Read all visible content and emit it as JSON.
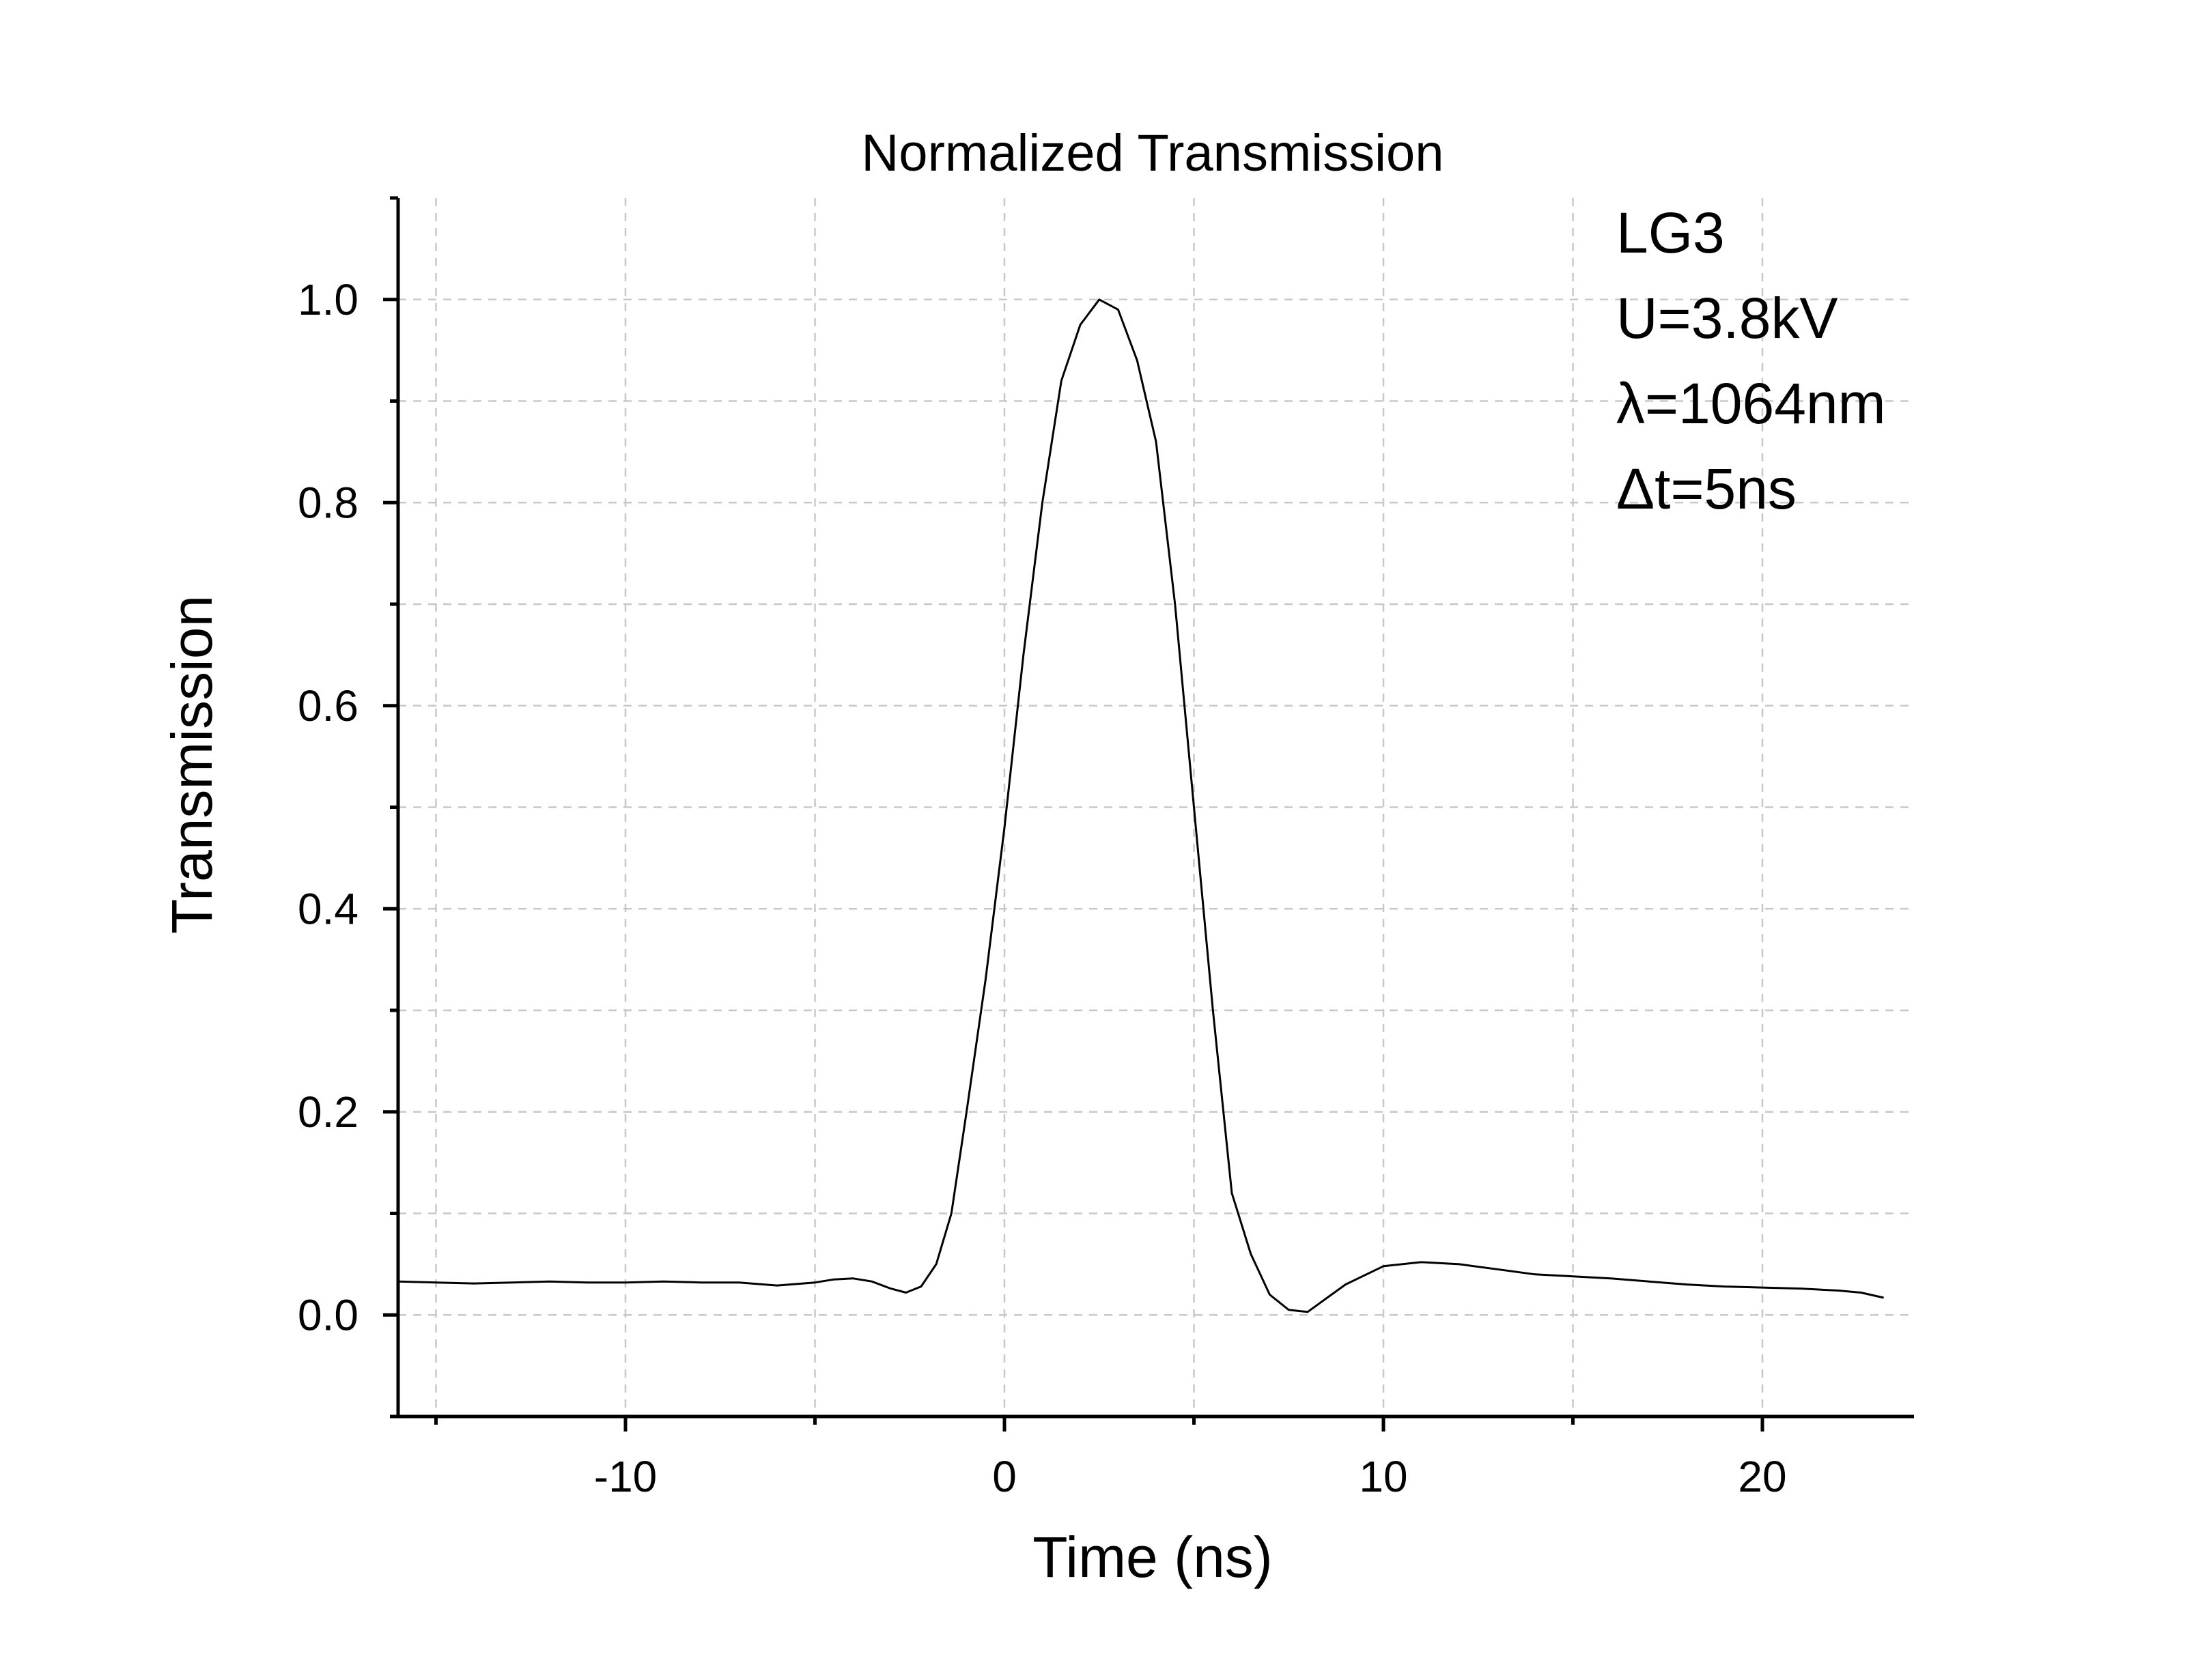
{
  "chart_data": {
    "type": "line",
    "title": "Normalized Transmission",
    "xlabel": "Time (ns)",
    "ylabel": "Transmission",
    "xlim": [
      -16,
      24
    ],
    "ylim": [
      -0.1,
      1.1
    ],
    "x_major_ticks": [
      -10,
      0,
      10,
      20
    ],
    "x_minor_ticks": [
      -15,
      -5,
      5,
      15
    ],
    "y_major_ticks": [
      0.0,
      0.2,
      0.4,
      0.6,
      0.8,
      1.0
    ],
    "y_minor_ticks": [
      -0.1,
      0.1,
      0.3,
      0.5,
      0.7,
      0.9,
      1.1
    ],
    "x_tick_labels": [
      "-10",
      "0",
      "10",
      "20"
    ],
    "y_tick_labels": [
      "0.0",
      "0.2",
      "0.4",
      "0.6",
      "0.8",
      "1.0"
    ],
    "grid": true,
    "annotations": [
      "LG3",
      "U=3.8kV",
      "λ=1064nm",
      "Δt=5ns"
    ],
    "annotation_position": "top-right",
    "series": [
      {
        "color": "#000000",
        "x": [
          -16,
          -15,
          -14,
          -13,
          -12,
          -11,
          -10,
          -9,
          -8,
          -7,
          -6,
          -5,
          -4.5,
          -4,
          -3.5,
          -3,
          -2.6,
          -2.2,
          -1.8,
          -1.4,
          -1.0,
          -0.5,
          0,
          0.5,
          1.0,
          1.5,
          2.0,
          2.5,
          3.0,
          3.5,
          4.0,
          4.5,
          5.0,
          5.5,
          6.0,
          6.5,
          7.0,
          7.5,
          8.0,
          9.0,
          10.0,
          11.0,
          12.0,
          13.0,
          14.0,
          15.0,
          16.0,
          17.0,
          18.0,
          19.0,
          20.0,
          21.0,
          22.0,
          22.6,
          23.2
        ],
        "y": [
          0.033,
          0.032,
          0.031,
          0.032,
          0.033,
          0.032,
          0.032,
          0.033,
          0.032,
          0.032,
          0.029,
          0.032,
          0.035,
          0.036,
          0.033,
          0.026,
          0.022,
          0.028,
          0.05,
          0.1,
          0.2,
          0.33,
          0.48,
          0.65,
          0.8,
          0.92,
          0.975,
          1.0,
          0.99,
          0.94,
          0.86,
          0.7,
          0.5,
          0.3,
          0.12,
          0.06,
          0.02,
          0.005,
          0.003,
          0.03,
          0.048,
          0.052,
          0.05,
          0.045,
          0.04,
          0.038,
          0.036,
          0.033,
          0.03,
          0.028,
          0.027,
          0.026,
          0.024,
          0.022,
          0.017
        ]
      }
    ]
  }
}
